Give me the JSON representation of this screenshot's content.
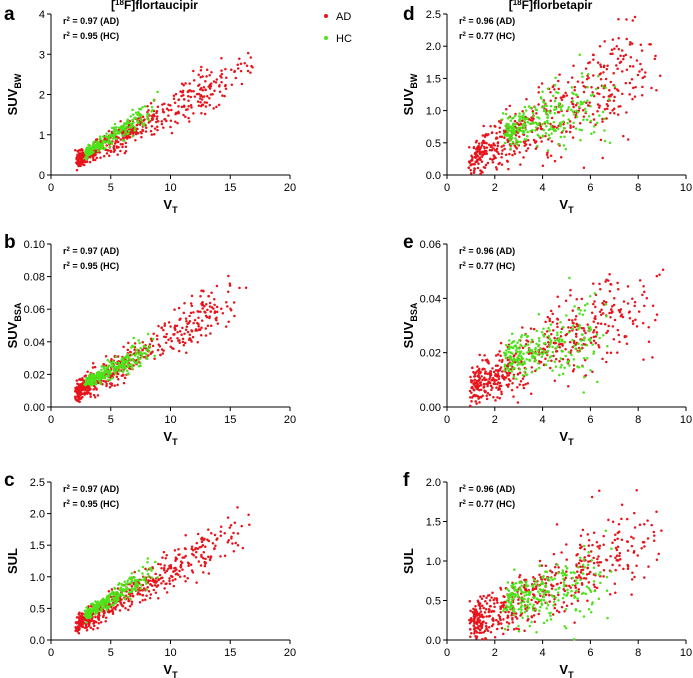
{
  "colors": {
    "AD": "#e8141b",
    "HC": "#4ee21a"
  },
  "legend": [
    {
      "name": "AD",
      "color": "#e8141b"
    },
    {
      "name": "HC",
      "color": "#4ee21a"
    }
  ],
  "chart_data": [
    {
      "id": "a",
      "letter": "a",
      "type": "scatter",
      "title": "[18F]flortaucipir",
      "title_parts": {
        "open": "[",
        "sup": "18",
        "rest": "F]flortaucipir"
      },
      "xlabel": "VT",
      "xlabel_parts": {
        "main": "V",
        "sub": "T"
      },
      "ylabel": "SUVBW",
      "ylabel_parts": {
        "main": "SUV",
        "sub": "BW"
      },
      "xlim": [
        0,
        20
      ],
      "ylim": [
        0,
        4
      ],
      "xticks": [
        "0",
        "5",
        "10",
        "15",
        "20"
      ],
      "yticks": [
        "0",
        "1",
        "2",
        "3",
        "4"
      ],
      "annotations": [
        {
          "pre": "r",
          "sup": "2",
          "post": " = 0.97 (AD)"
        },
        {
          "pre": "r",
          "sup": "2",
          "post": " = 0.95 (HC)"
        }
      ],
      "series": [
        {
          "name": "AD",
          "trend": [
            [
              2.2,
              0.35
            ],
            [
              17.5,
              2.85
            ]
          ],
          "spread": 0.32,
          "x_extent": [
            2.2,
            17.5
          ]
        },
        {
          "name": "HC",
          "trend": [
            [
              3.0,
              0.55
            ],
            [
              9.0,
              1.75
            ]
          ],
          "spread": 0.18,
          "x_extent": [
            3.0,
            9.0
          ]
        }
      ]
    },
    {
      "id": "d",
      "letter": "d",
      "type": "scatter",
      "title": "[18F]florbetapir",
      "title_parts": {
        "open": "[",
        "sup": "18",
        "rest": "F]florbetapir"
      },
      "xlabel": "VT",
      "xlabel_parts": {
        "main": "V",
        "sub": "T"
      },
      "ylabel": "SUVBW",
      "ylabel_parts": {
        "main": "SUV",
        "sub": "BW"
      },
      "xlim": [
        0,
        10
      ],
      "ylim": [
        0,
        2.5
      ],
      "xticks": [
        "0",
        "2",
        "4",
        "6",
        "8",
        "10"
      ],
      "yticks": [
        "0.0",
        "0.5",
        "1.0",
        "1.5",
        "2.0",
        "2.5"
      ],
      "annotations": [
        {
          "pre": "r",
          "sup": "2",
          "post": " = 0.96 (AD)"
        },
        {
          "pre": "r",
          "sup": "2",
          "post": " = 0.77 (HC)"
        }
      ],
      "series": [
        {
          "name": "AD",
          "trend": [
            [
              1.1,
              0.28
            ],
            [
              9.4,
              1.85
            ]
          ],
          "spread": 0.45,
          "x_extent": [
            1.1,
            9.4
          ]
        },
        {
          "name": "HC",
          "trend": [
            [
              2.5,
              0.75
            ],
            [
              7.0,
              1.05
            ]
          ],
          "spread": 0.35,
          "x_extent": [
            2.5,
            7.2
          ]
        }
      ]
    },
    {
      "id": "b",
      "letter": "b",
      "type": "scatter",
      "title": "",
      "xlabel": "VT",
      "xlabel_parts": {
        "main": "V",
        "sub": "T"
      },
      "ylabel": "SUVBSA",
      "ylabel_parts": {
        "main": "SUV",
        "sub": "BSA"
      },
      "xlim": [
        0,
        20
      ],
      "ylim": [
        0,
        0.1
      ],
      "xticks": [
        "0",
        "5",
        "10",
        "15",
        "20"
      ],
      "yticks": [
        "0.00",
        "0.02",
        "0.04",
        "0.06",
        "0.08",
        "0.10"
      ],
      "annotations": [
        {
          "pre": "r",
          "sup": "2",
          "post": " = 0.97 (AD)"
        },
        {
          "pre": "r",
          "sup": "2",
          "post": " = 0.95 (HC)"
        }
      ],
      "series": [
        {
          "name": "AD",
          "trend": [
            [
              2.2,
              0.009
            ],
            [
              17.5,
              0.078
            ]
          ],
          "spread": 0.009,
          "x_extent": [
            2.2,
            17.5
          ]
        },
        {
          "name": "HC",
          "trend": [
            [
              3.0,
              0.015
            ],
            [
              9.0,
              0.038
            ]
          ],
          "spread": 0.005,
          "x_extent": [
            3.0,
            9.0
          ]
        }
      ]
    },
    {
      "id": "e",
      "letter": "e",
      "type": "scatter",
      "title": "",
      "xlabel": "VT",
      "xlabel_parts": {
        "main": "V",
        "sub": "T"
      },
      "ylabel": "SUVBSA",
      "ylabel_parts": {
        "main": "SUV",
        "sub": "BSA"
      },
      "xlim": [
        0,
        10
      ],
      "ylim": [
        0,
        0.06
      ],
      "xticks": [
        "0",
        "2",
        "4",
        "6",
        "8",
        "10"
      ],
      "yticks": [
        "0.00",
        "0.02",
        "0.04",
        "0.06"
      ],
      "annotations": [
        {
          "pre": "r",
          "sup": "2",
          "post": " = 0.96 (AD)"
        },
        {
          "pre": "r",
          "sup": "2",
          "post": " = 0.77 (HC)"
        }
      ],
      "series": [
        {
          "name": "AD",
          "trend": [
            [
              1.1,
              0.007
            ],
            [
              9.4,
              0.046
            ]
          ],
          "spread": 0.011,
          "x_extent": [
            1.1,
            9.4
          ]
        },
        {
          "name": "HC",
          "trend": [
            [
              2.5,
              0.018
            ],
            [
              7.2,
              0.026
            ]
          ],
          "spread": 0.009,
          "x_extent": [
            2.5,
            7.2
          ]
        }
      ]
    },
    {
      "id": "c",
      "letter": "c",
      "type": "scatter",
      "title": "",
      "xlabel": "VT",
      "xlabel_parts": {
        "main": "V",
        "sub": "T"
      },
      "ylabel": "SUL",
      "ylabel_parts": {
        "main": "SUL",
        "sub": ""
      },
      "xlim": [
        0,
        20
      ],
      "ylim": [
        0,
        2.5
      ],
      "xticks": [
        "0",
        "5",
        "10",
        "15",
        "20"
      ],
      "yticks": [
        "0.0",
        "0.5",
        "1.0",
        "1.5",
        "2.0",
        "2.5"
      ],
      "annotations": [
        {
          "pre": "r",
          "sup": "2",
          "post": " = 0.97 (AD)"
        },
        {
          "pre": "r",
          "sup": "2",
          "post": " = 0.95 (HC)"
        }
      ],
      "series": [
        {
          "name": "AD",
          "trend": [
            [
              2.2,
              0.25
            ],
            [
              17.5,
              1.9
            ]
          ],
          "spread": 0.2,
          "x_extent": [
            2.2,
            17.5
          ]
        },
        {
          "name": "HC",
          "trend": [
            [
              3.0,
              0.4
            ],
            [
              9.0,
              1.15
            ]
          ],
          "spread": 0.12,
          "x_extent": [
            3.0,
            9.0
          ]
        }
      ]
    },
    {
      "id": "f",
      "letter": "f",
      "type": "scatter",
      "title": "",
      "xlabel": "VT",
      "xlabel_parts": {
        "main": "V",
        "sub": "T"
      },
      "ylabel": "SUL",
      "ylabel_parts": {
        "main": "SUL",
        "sub": ""
      },
      "xlim": [
        0,
        10
      ],
      "ylim": [
        0,
        2.0
      ],
      "xticks": [
        "0",
        "2",
        "4",
        "6",
        "8",
        "10"
      ],
      "yticks": [
        "0.0",
        "0.5",
        "1.0",
        "1.5",
        "2.0"
      ],
      "annotations": [
        {
          "pre": "r",
          "sup": "2",
          "post": " = 0.96 (AD)"
        },
        {
          "pre": "r",
          "sup": "2",
          "post": " = 0.77 (HC)"
        }
      ],
      "series": [
        {
          "name": "AD",
          "trend": [
            [
              1.1,
              0.2
            ],
            [
              9.4,
              1.45
            ]
          ],
          "spread": 0.36,
          "x_extent": [
            1.1,
            9.4
          ]
        },
        {
          "name": "HC",
          "trend": [
            [
              2.5,
              0.5
            ],
            [
              7.2,
              0.75
            ]
          ],
          "spread": 0.3,
          "x_extent": [
            2.5,
            7.2
          ]
        }
      ]
    }
  ]
}
